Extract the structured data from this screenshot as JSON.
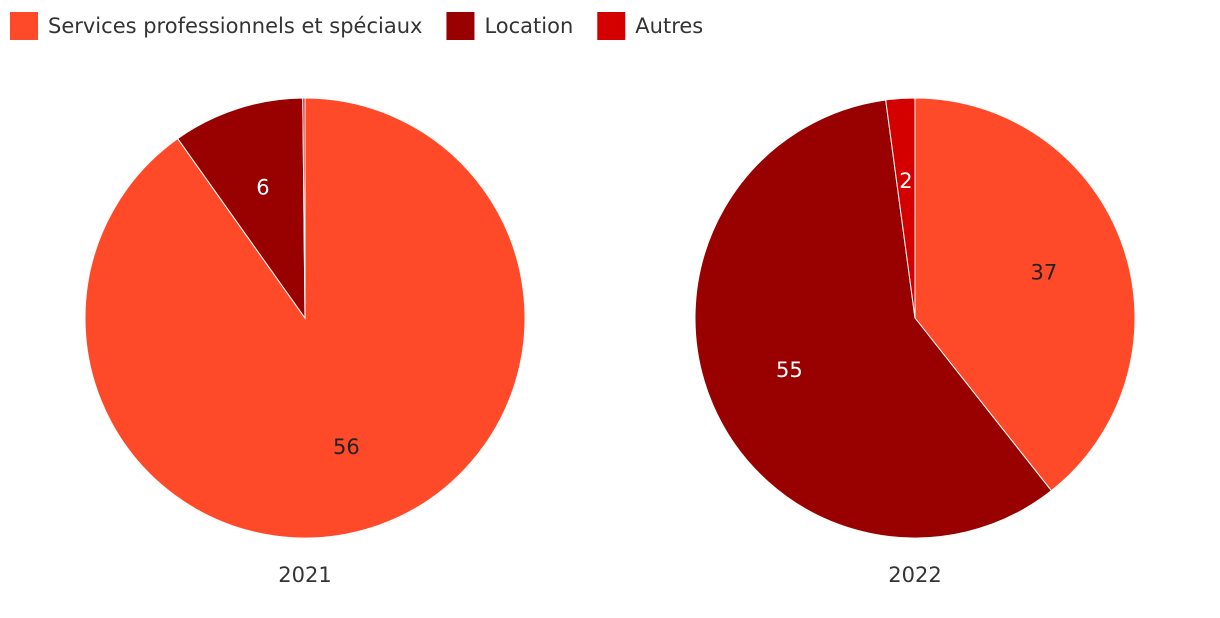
{
  "chart_data": [
    {
      "type": "pie",
      "title": "2021",
      "categories": [
        "Services professionnels et spéciaux",
        "Location",
        "Autres"
      ],
      "values": [
        56,
        6,
        0.1
      ],
      "colors": [
        "#ff4a2a",
        "#990000",
        "#d40000"
      ]
    },
    {
      "type": "pie",
      "title": "2022",
      "categories": [
        "Services professionnels et spéciaux",
        "Location",
        "Autres"
      ],
      "values": [
        37,
        55,
        2
      ],
      "colors": [
        "#ff4a2a",
        "#990000",
        "#d40000"
      ]
    }
  ]
}
